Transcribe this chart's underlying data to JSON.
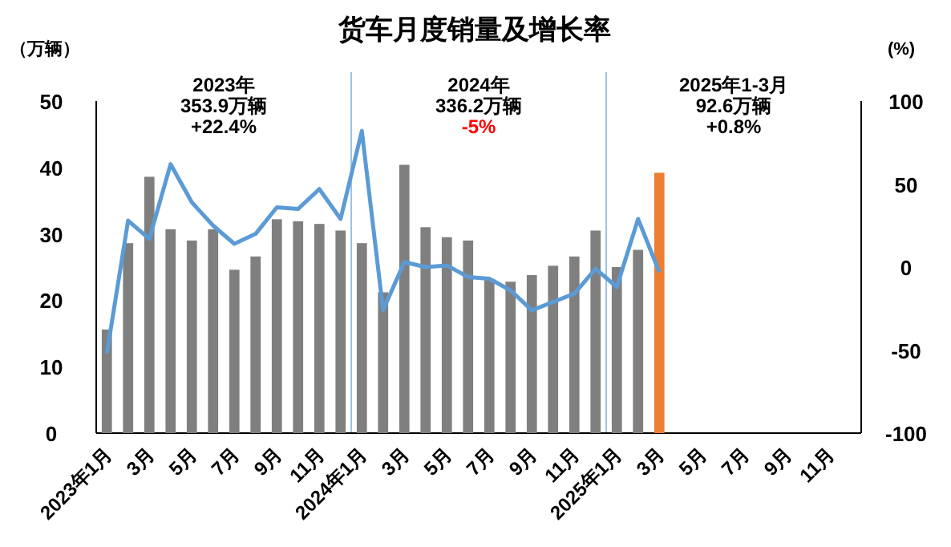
{
  "chart_data": {
    "type": "bar",
    "title": "货车月度销量及增长率",
    "ylabel": "（万辆）",
    "y2label": "(%)",
    "categories": [
      "2023年1月",
      null,
      "3月",
      null,
      "5月",
      null,
      "7月",
      null,
      "9月",
      null,
      "11月",
      null,
      "2024年1月",
      null,
      "3月",
      null,
      "5月",
      null,
      "7月",
      null,
      "9月",
      null,
      "11月",
      null,
      "2025年1月",
      null,
      "3月",
      null,
      "5月",
      null,
      "7月",
      null,
      "9月",
      null,
      "11月",
      null
    ],
    "series": [
      {
        "colors": [
          "#7f7f7f",
          "#7f7f7f",
          "#7f7f7f",
          "#7f7f7f",
          "#7f7f7f",
          "#7f7f7f",
          "#7f7f7f",
          "#7f7f7f",
          "#7f7f7f",
          "#7f7f7f",
          "#7f7f7f",
          "#7f7f7f",
          "#7f7f7f",
          "#7f7f7f",
          "#7f7f7f",
          "#7f7f7f",
          "#7f7f7f",
          "#7f7f7f",
          "#7f7f7f",
          "#7f7f7f",
          "#7f7f7f",
          "#7f7f7f",
          "#7f7f7f",
          "#7f7f7f",
          "#7f7f7f",
          "#7f7f7f",
          "#ed7d31",
          null,
          null,
          null,
          null,
          null,
          null,
          null,
          null,
          null
        ],
        "values": [
          15.6,
          28.6,
          38.6,
          30.7,
          29.0,
          30.7,
          24.6,
          26.6,
          32.2,
          31.9,
          31.5,
          30.5,
          28.6,
          21.2,
          40.4,
          31.0,
          29.5,
          29.0,
          23.2,
          22.8,
          23.8,
          25.2,
          26.6,
          30.5,
          25.0,
          27.6,
          39.2,
          null,
          null,
          null,
          null,
          null,
          null,
          null,
          null,
          null
        ]
      },
      {
        "type": "line",
        "axis": "y2",
        "color": "#5b9bd5",
        "values": [
          -52,
          28,
          17,
          62,
          39,
          25,
          14,
          20,
          36,
          35,
          47,
          29,
          82,
          -26,
          3,
          0,
          1,
          -6,
          -7,
          -14,
          -26,
          -21,
          -16,
          -1,
          -12,
          29,
          -3,
          null,
          null,
          null,
          null,
          null,
          null,
          null,
          null,
          null
        ]
      }
    ],
    "ylim": [
      0,
      50
    ],
    "yticks": [
      0,
      10,
      20,
      30,
      40,
      50
    ],
    "y2lim": [
      -100,
      100
    ],
    "y2ticks": [
      -100,
      -50,
      0,
      50,
      100
    ],
    "annotations": [
      "2023年",
      "353.9万辆",
      "+22.4%",
      "2024年",
      "336.2万辆",
      "-5%",
      "2025年1-3月",
      "92.6万辆",
      "+0.8%"
    ]
  }
}
